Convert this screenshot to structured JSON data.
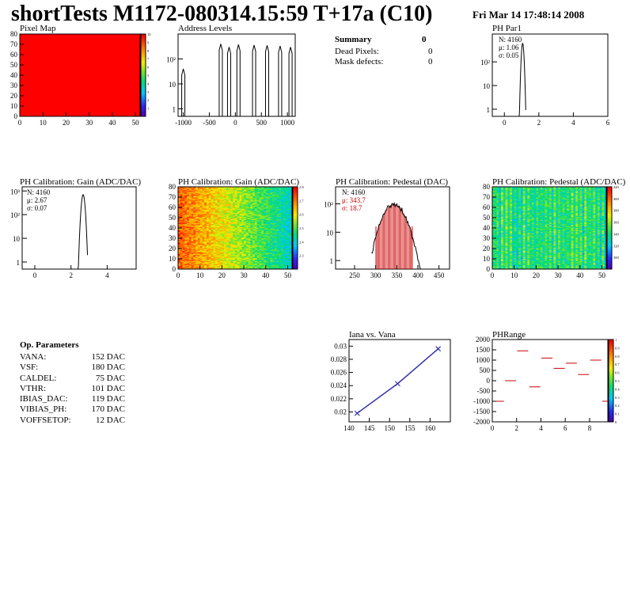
{
  "header": {
    "title": "shortTests M1172-080314.15:59 T+17a (C10)",
    "datetime": "Fri Mar 14 17:48:14 2008"
  },
  "summary": {
    "title": "Summary",
    "value": "0",
    "rows": [
      {
        "label": "Dead Pixels:",
        "value": "0"
      },
      {
        "label": "Mask defects:",
        "value": "0"
      }
    ]
  },
  "op_params": {
    "title": "Op. Parameters",
    "rows": [
      {
        "label": "VANA:",
        "value": "152 DAC"
      },
      {
        "label": "VSF:",
        "value": "180 DAC"
      },
      {
        "label": "CALDEL:",
        "value": "75 DAC"
      },
      {
        "label": "VTHR:",
        "value": "101 DAC"
      },
      {
        "label": "IBIAS_DAC:",
        "value": "119 DAC"
      },
      {
        "label": "VIBIAS_PH:",
        "value": "170 DAC"
      },
      {
        "label": "VOFFSETOP:",
        "value": "12 DAC"
      }
    ]
  },
  "chart_data": [
    {
      "id": "pixel-map",
      "type": "heatmap",
      "title": "Pixel Map",
      "xlim": [
        0,
        52
      ],
      "ylim": [
        0,
        80
      ],
      "xticks": [
        "0",
        "10",
        "20",
        "30",
        "40",
        "50"
      ],
      "yticks": [
        "0",
        "10",
        "20",
        "30",
        "40",
        "50",
        "60",
        "70",
        "80"
      ],
      "fill_value": 10,
      "zlim": [
        0,
        10
      ],
      "colors": {
        "fill": "#ff0000"
      }
    },
    {
      "id": "address-levels",
      "type": "bar",
      "title": "Address Levels",
      "xlim": [
        -1100,
        1150
      ],
      "xticks": [
        "-1000",
        "-500",
        "0",
        "500",
        "1000"
      ],
      "ylog": true,
      "yticks": [
        "1",
        "10",
        "10²"
      ],
      "peaks": [
        {
          "x": -1000,
          "y": 40
        },
        {
          "x": -280,
          "y": 400
        },
        {
          "x": -120,
          "y": 300
        },
        {
          "x": 60,
          "y": 380
        },
        {
          "x": 360,
          "y": 360
        },
        {
          "x": 610,
          "y": 350
        },
        {
          "x": 860,
          "y": 330
        },
        {
          "x": 1060,
          "y": 300
        }
      ]
    },
    {
      "id": "ph-par1",
      "type": "bar",
      "title": "PH Par1",
      "xlim": [
        -0.7,
        6
      ],
      "xticks": [
        "0",
        "2",
        "4",
        "6"
      ],
      "ylog": true,
      "yticks": [
        "1",
        "10",
        "10²"
      ],
      "stats": [
        "N: 4160",
        "μ: 1.06",
        "σ: 0.05"
      ],
      "mean": 1.06,
      "sigma": 0.05,
      "peak": 600
    },
    {
      "id": "ph-gain-hist",
      "type": "bar",
      "title": "PH Calibration: Gain (ADC/DAC)",
      "xlim": [
        -0.7,
        5.6
      ],
      "xticks": [
        "0",
        "2",
        "4"
      ],
      "ylog": true,
      "yticks": [
        "1",
        "10",
        "10²",
        "10³"
      ],
      "stats": [
        "N: 4160",
        "μ: 2.67",
        "σ: 0.07"
      ],
      "mean": 2.67,
      "sigma": 0.07,
      "peak": 700
    },
    {
      "id": "ph-gain-map",
      "type": "heatmap",
      "title": "PH Calibration: Gain (ADC/DAC)",
      "xlim": [
        0,
        52
      ],
      "ylim": [
        0,
        80
      ],
      "xticks": [
        "0",
        "10",
        "20",
        "30",
        "40",
        "50"
      ],
      "yticks": [
        "0",
        "10",
        "20",
        "30",
        "40",
        "50",
        "60",
        "70",
        "80"
      ],
      "zlim": [
        2.2,
        2.8
      ],
      "zticks": [
        "2.3",
        "2.4",
        "2.5",
        "2.6",
        "2.7",
        "2.8"
      ]
    },
    {
      "id": "ph-pedestal-hist",
      "type": "bar",
      "title": "PH Calibration: Pedestal (DAC)",
      "xlim": [
        205,
        475
      ],
      "xticks": [
        "250",
        "300",
        "350",
        "400",
        "450"
      ],
      "ylog": true,
      "yticks": [
        "1",
        "10",
        "10²"
      ],
      "stats": [
        "N: 4160",
        "μ: 343.7",
        "σ: 18.7"
      ],
      "mean": 343.7,
      "sigma": 18.7,
      "peak": 100,
      "colors": {
        "fit": "#cc0000"
      }
    },
    {
      "id": "ph-pedestal-map",
      "type": "heatmap",
      "title": "PH Calibration: Pedestal (ADC/DAC)",
      "xlim": [
        0,
        52
      ],
      "ylim": [
        0,
        80
      ],
      "xticks": [
        "0",
        "10",
        "20",
        "30",
        "40",
        "50"
      ],
      "yticks": [
        "0",
        "10",
        "20",
        "30",
        "40",
        "50",
        "60",
        "70",
        "80"
      ],
      "zlim": [
        280,
        420
      ],
      "zticks": [
        "300",
        "320",
        "340",
        "360",
        "380",
        "400",
        "420"
      ]
    },
    {
      "id": "iana-vana",
      "type": "line",
      "title": "Iana vs. Vana",
      "xlim": [
        140,
        165
      ],
      "ylim": [
        0.0185,
        0.031
      ],
      "xticks": [
        "140",
        "145",
        "150",
        "155",
        "160"
      ],
      "yticks": [
        "0.02",
        "0.022",
        "0.024",
        "0.026",
        "0.028",
        "0.03"
      ],
      "x": [
        142,
        152,
        162
      ],
      "y": [
        0.0198,
        0.0243,
        0.0296
      ],
      "colors": {
        "line": "#3333aa"
      }
    },
    {
      "id": "ph-range",
      "type": "scatter",
      "title": "PHRange",
      "xlim": [
        0,
        9.5
      ],
      "ylim": [
        -2000,
        2000
      ],
      "xticks": [
        "0",
        "2",
        "4",
        "6",
        "8"
      ],
      "yticks": [
        "-2000",
        "-1500",
        "-1000",
        "-500",
        "0",
        "500",
        "1000",
        "1500",
        "2000"
      ],
      "x": [
        0.5,
        1.5,
        2.5,
        3.5,
        4.5,
        5.5,
        6.5,
        7.5,
        8.5,
        9.5
      ],
      "y": [
        -1000,
        0,
        1450,
        -300,
        1100,
        600,
        850,
        300,
        1000,
        -1000
      ],
      "zlim": [
        0,
        1
      ],
      "zticks": [
        "0",
        "0.1",
        "0.2",
        "0.3",
        "0.4",
        "0.5",
        "0.6",
        "0.7",
        "0.8",
        "0.9",
        "1"
      ],
      "colors": {
        "marker": "#cc0000"
      }
    }
  ]
}
